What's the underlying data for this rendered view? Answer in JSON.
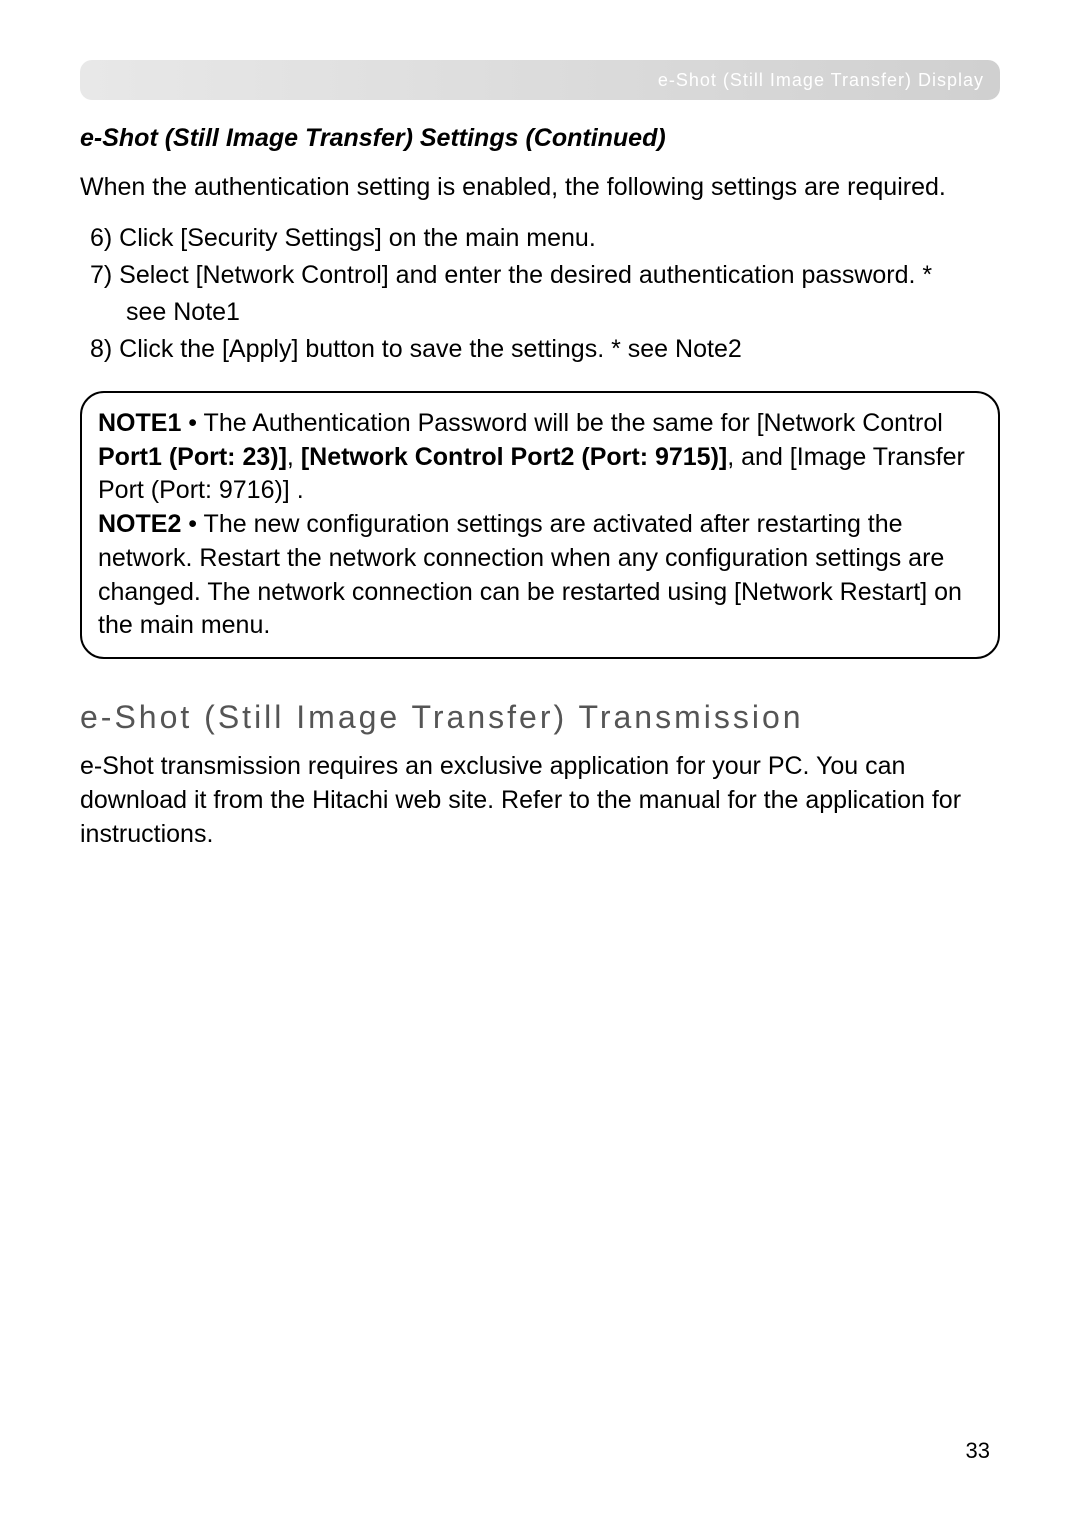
{
  "header": {
    "breadcrumb": "e-Shot (Still Image Transfer) Display"
  },
  "section": {
    "title": "e-Shot (Still Image Transfer) Settings (Continued)",
    "intro": "When the authentication setting is enabled, the following settings are required.",
    "steps": {
      "s6": "6) Click [Security Settings]    on the main menu.",
      "s7": "7) Select [Network Control]    and enter the desired authentication password. *",
      "s7b": "see Note1",
      "s8": "8) Click the [Apply]  button to save the settings. * see Note2"
    }
  },
  "notes": {
    "note1_label": "NOTE1",
    "note1_text_a": " • The Authentication Password will be the same for [Network Control ",
    "note1_bold1": "Port1 (Port: 23)]",
    "note1_comma": ", ",
    "note1_bold2": "[Network Control Port2 (Port: 9715)]",
    "note1_text_b": ", and [Image Transfer Port (Port: 9716)]  .",
    "note2_label": "NOTE2",
    "note2_text": " • The new configuration settings are activated after restarting the network. Restart the network connection when any configuration settings are changed. The network connection can be restarted using [Network Restart]   on the main menu."
  },
  "subsection": {
    "title": "e-Shot (Still Image Transfer) Transmission",
    "body": "e-Shot transmission requires an exclusive application for your PC. You can download it from the Hitachi web site. Refer to the manual for the application for instructions."
  },
  "page_number": "33"
}
